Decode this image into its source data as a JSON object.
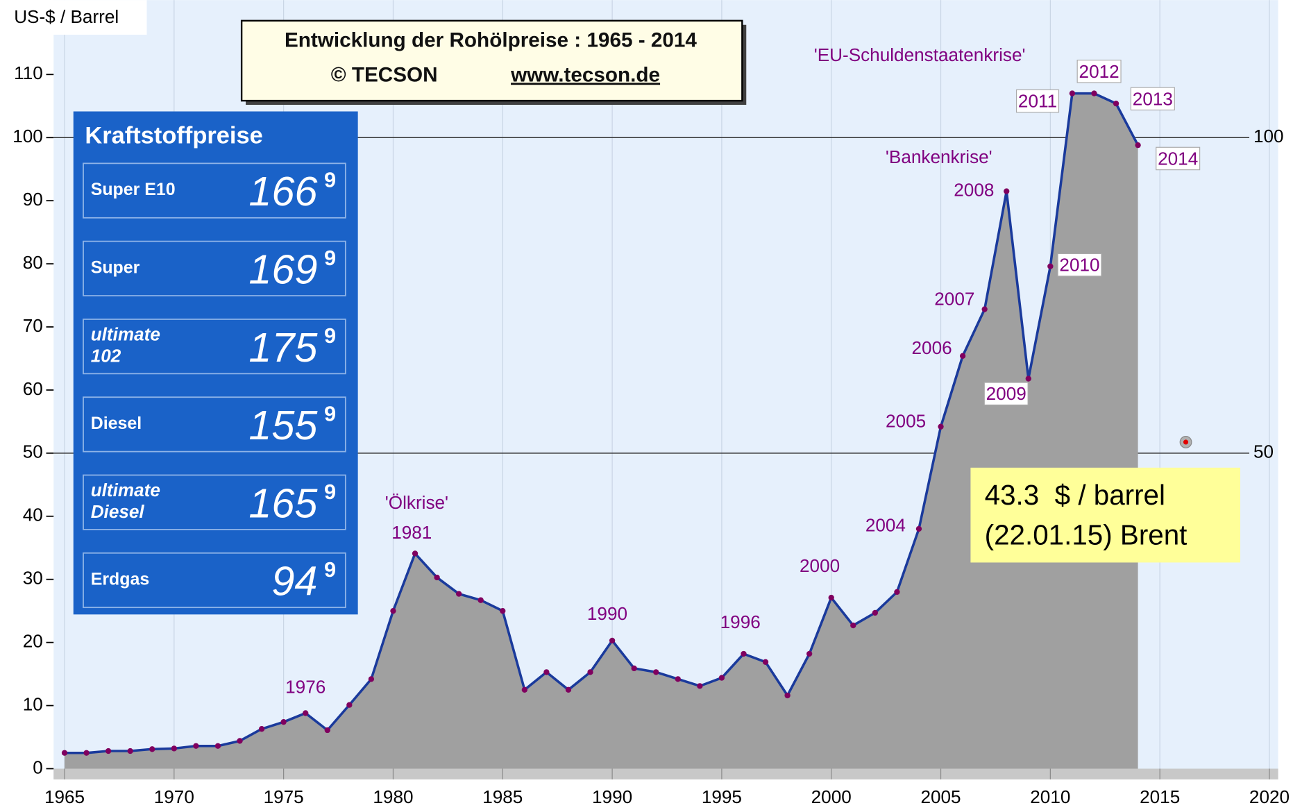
{
  "chart_data": {
    "type": "area",
    "y_label": "US-$ / Barrel",
    "x": [
      1965,
      1966,
      1967,
      1968,
      1969,
      1970,
      1971,
      1972,
      1973,
      1974,
      1975,
      1976,
      1977,
      1978,
      1979,
      1980,
      1981,
      1982,
      1983,
      1984,
      1985,
      1986,
      1987,
      1988,
      1989,
      1990,
      1991,
      1992,
      1993,
      1994,
      1995,
      1996,
      1997,
      1998,
      1999,
      2000,
      2001,
      2002,
      2003,
      2004,
      2005,
      2006,
      2007,
      2008,
      2009,
      2010,
      2011,
      2012,
      2013,
      2014
    ],
    "values": [
      2.5,
      2.5,
      2.8,
      2.8,
      3.1,
      3.2,
      3.6,
      3.6,
      4.4,
      6.3,
      7.4,
      8.8,
      6.1,
      10.1,
      14.2,
      25,
      34.1,
      30.3,
      27.7,
      26.7,
      25,
      12.5,
      15.3,
      12.5,
      15.3,
      20.3,
      15.9,
      15.3,
      14.2,
      13.1,
      14.4,
      18.2,
      16.9,
      11.6,
      18.2,
      27.1,
      22.7,
      24.7,
      28,
      38,
      54.2,
      65.4,
      72.8,
      91.5,
      61.8,
      79.6,
      107,
      107,
      105.4,
      98.8
    ],
    "area_color": "#a0a0a0",
    "line_color": "#1a3a9c",
    "marker_color": "#80005f",
    "xlim": [
      1964.5,
      2020.4
    ],
    "xticks": [
      1965,
      1970,
      1975,
      1980,
      1985,
      1990,
      1995,
      2000,
      2005,
      2010,
      2015,
      2020
    ],
    "ylim": [
      0,
      118
    ],
    "yticks": [
      0,
      10,
      20,
      30,
      40,
      50,
      60,
      70,
      80,
      90,
      100,
      110
    ],
    "y2lim": [
      0,
      118
    ],
    "y2ticks": [
      50,
      100
    ],
    "grid": true,
    "annotations": [
      {
        "text": "1976",
        "x": 1976
      },
      {
        "text": "'Ölkrise'",
        "x": 1981
      },
      {
        "text": "1981",
        "x": 1981
      },
      {
        "text": "1990",
        "x": 1990
      },
      {
        "text": "1996",
        "x": 1996
      },
      {
        "text": "2000",
        "x": 2000
      },
      {
        "text": "2004",
        "x": 2004
      },
      {
        "text": "2005",
        "x": 2005
      },
      {
        "text": "2006",
        "x": 2006
      },
      {
        "text": "2007",
        "x": 2007
      },
      {
        "text": "'Bankenkrise'",
        "x": 2008
      },
      {
        "text": "2008",
        "x": 2008
      },
      {
        "text": "2009",
        "x": 2009
      },
      {
        "text": "2010",
        "x": 2010
      },
      {
        "text": "2011",
        "x": 2011
      },
      {
        "text": "'EU-Schuldenstaatenkrise'",
        "x": 2011
      },
      {
        "text": "2012",
        "x": 2012
      },
      {
        "text": "2013",
        "x": 2013
      },
      {
        "text": "2014",
        "x": 2014
      }
    ]
  },
  "title_box": {
    "line1": "Entwicklung der Rohölpreise :   1965 - 2014",
    "copyright": "© TECSON",
    "url": "www.tecson.de"
  },
  "fuel_panel": {
    "title": "Kraftstoffpreise",
    "items": [
      {
        "lines": [
          "Super E10"
        ],
        "price": "166",
        "fraction": "9"
      },
      {
        "lines": [
          "Super"
        ],
        "price": "169",
        "fraction": "9"
      },
      {
        "lines": [
          "ultimate",
          "102"
        ],
        "price": "175",
        "fraction": "9"
      },
      {
        "lines": [
          "Diesel"
        ],
        "price": "155",
        "fraction": "9"
      },
      {
        "lines": [
          "ultimate",
          "Diesel"
        ],
        "price": "165",
        "fraction": "9"
      },
      {
        "lines": [
          "Erdgas"
        ],
        "price": "94",
        "fraction": "9"
      }
    ]
  },
  "current_price": {
    "line1": "43.3  $ / barrel",
    "line2": "(22.01.15) Brent"
  }
}
